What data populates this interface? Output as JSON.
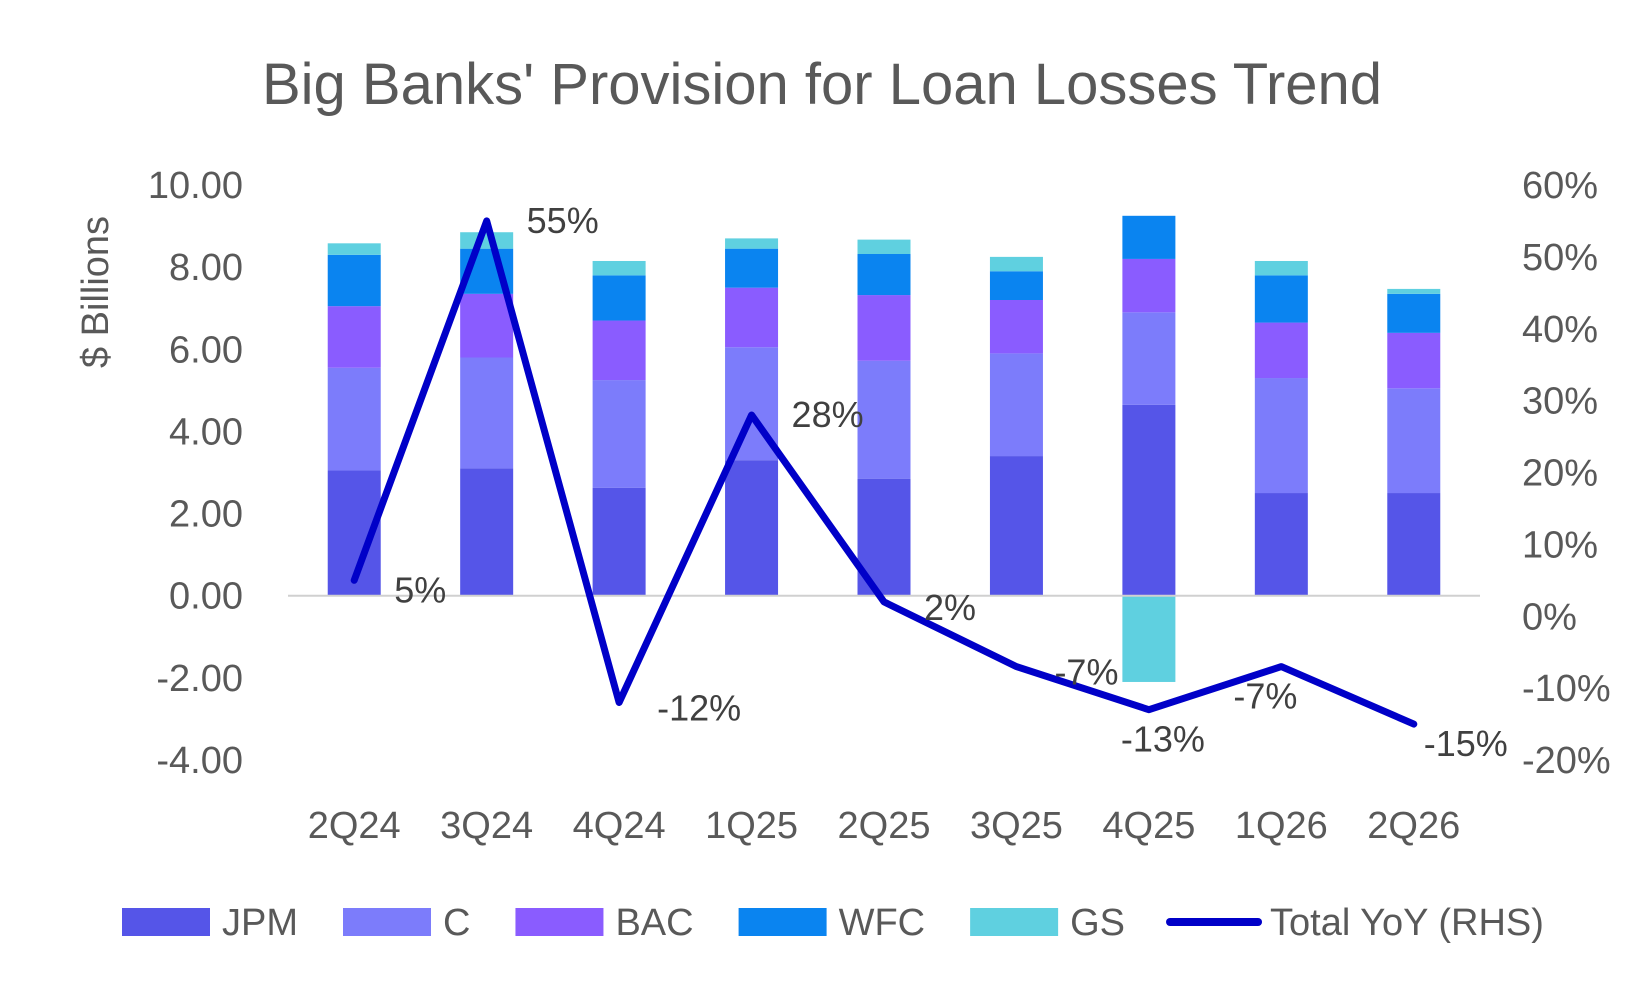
{
  "chart_data": {
    "type": "bar",
    "stacked": true,
    "title": "Big Banks' Provision for Loan Losses Trend",
    "xlabel": "",
    "ylabel": "$ Billions",
    "ylim": [
      -4,
      10
    ],
    "y_ticks": [
      "10.00",
      "8.00",
      "6.00",
      "4.00",
      "2.00",
      "0.00",
      "-2.00",
      "-4.00"
    ],
    "y2lim": [
      -20,
      60
    ],
    "y2_ticks": [
      "60%",
      "50%",
      "40%",
      "30%",
      "20%",
      "10%",
      "0%",
      "-10%",
      "-20%"
    ],
    "grid": false,
    "legend_position": "bottom",
    "categories": [
      "2Q24",
      "3Q24",
      "4Q24",
      "1Q25",
      "2Q25",
      "3Q25",
      "4Q25",
      "1Q26",
      "2Q26"
    ],
    "series": [
      {
        "name": "JPM",
        "color": "#5555e8",
        "values": [
          3.05,
          3.1,
          2.63,
          3.3,
          2.85,
          3.4,
          4.65,
          2.5,
          2.5
        ]
      },
      {
        "name": "C",
        "color": "#7c7cfb",
        "values": [
          2.5,
          2.7,
          2.62,
          2.75,
          2.87,
          2.5,
          2.25,
          2.8,
          2.55
        ]
      },
      {
        "name": "BAC",
        "color": "#8a5cff",
        "values": [
          1.5,
          1.55,
          1.45,
          1.45,
          1.6,
          1.3,
          1.3,
          1.35,
          1.35
        ]
      },
      {
        "name": "WFC",
        "color": "#0a84f0",
        "values": [
          1.25,
          1.1,
          1.1,
          0.95,
          1.0,
          0.7,
          1.05,
          1.15,
          0.95
        ]
      },
      {
        "name": "GS",
        "color": "#5fd0e0",
        "values": [
          0.28,
          0.4,
          0.35,
          0.25,
          0.35,
          0.35,
          -2.1,
          0.35,
          0.12
        ]
      }
    ],
    "line_series": {
      "name": "Total YoY (RHS)",
      "color": "#0000c8",
      "axis": "right",
      "values": [
        5,
        55,
        -12,
        28,
        2,
        -7,
        -13,
        -7,
        -15
      ],
      "labels": [
        "5%",
        "55%",
        "-12%",
        "28%",
        "2%",
        "-7%",
        "-13%",
        "-7%",
        "-15%"
      ]
    }
  }
}
